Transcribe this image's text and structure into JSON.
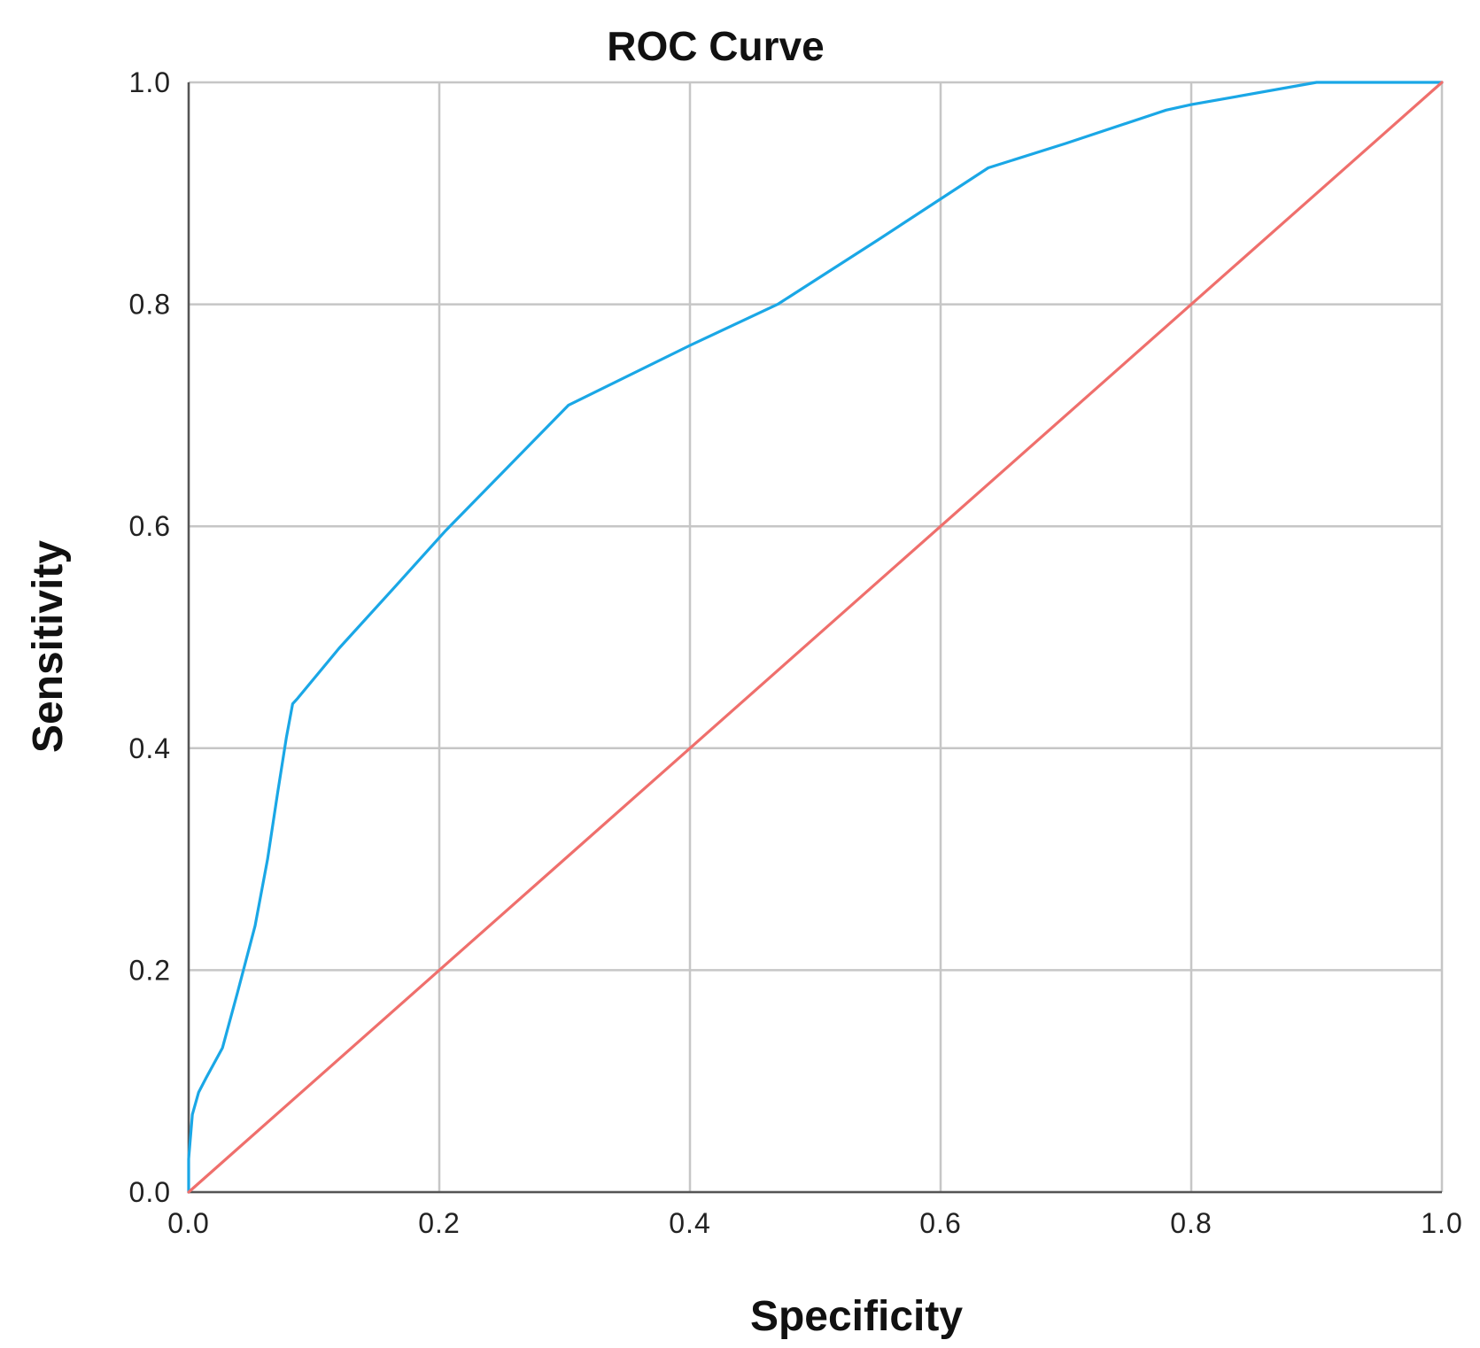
{
  "chart_data": {
    "type": "line",
    "title": "ROC Curve",
    "xlabel": "Specificity",
    "ylabel": "Sensitivity",
    "xlim": [
      0.0,
      1.0
    ],
    "ylim": [
      0.0,
      1.0
    ],
    "x_ticks": [
      "0.0",
      "0.2",
      "0.4",
      "0.6",
      "0.8",
      "1.0"
    ],
    "y_ticks": [
      "0.0",
      "0.2",
      "0.4",
      "0.6",
      "0.8",
      "1.0"
    ],
    "grid": true,
    "legend": "none",
    "series": [
      {
        "color": "#1aa7e6",
        "x": [
          0.0,
          0.0,
          0.003,
          0.008,
          0.014,
          0.027,
          0.039,
          0.053,
          0.063,
          0.071,
          0.078,
          0.083,
          0.087,
          0.12,
          0.165,
          0.205,
          0.25,
          0.303,
          0.4,
          0.47,
          0.55,
          0.6,
          0.638,
          0.7,
          0.78,
          0.8,
          0.9,
          1.0
        ],
        "y": [
          0.0,
          0.03,
          0.07,
          0.09,
          0.103,
          0.13,
          0.18,
          0.24,
          0.3,
          0.36,
          0.41,
          0.44,
          0.445,
          0.49,
          0.546,
          0.596,
          0.648,
          0.709,
          0.763,
          0.8,
          0.858,
          0.895,
          0.923,
          0.945,
          0.975,
          0.98,
          1.0,
          1.0
        ]
      },
      {
        "color": "#ef6f6c",
        "x": [
          0.0,
          1.0
        ],
        "y": [
          0.0,
          1.0
        ]
      }
    ]
  }
}
